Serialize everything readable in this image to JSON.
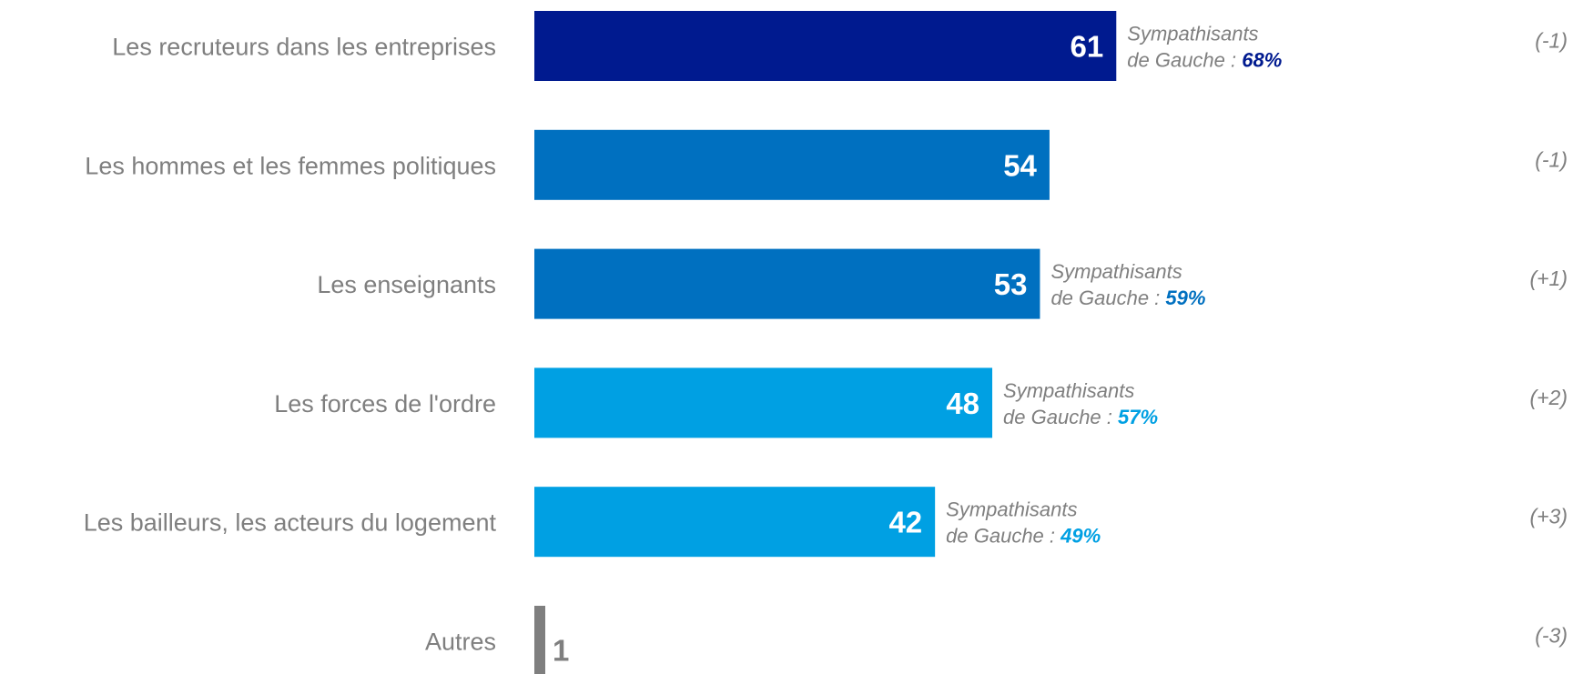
{
  "chart_data": {
    "type": "bar",
    "orientation": "horizontal",
    "categories": [
      "Les recruteurs dans les entreprises",
      "Les hommes et les femmes politiques",
      "Les enseignants",
      "Les forces de l'ordre",
      "Les bailleurs, les acteurs du logement",
      "Autres"
    ],
    "values": [
      61,
      54,
      53,
      48,
      42,
      1
    ],
    "value_labels": [
      "61",
      "54",
      "53",
      "48",
      "42",
      "1"
    ],
    "bar_colors": [
      "#001a8f",
      "#0070c0",
      "#0070c0",
      "#00a0e3",
      "#00a0e3",
      "#7f7f7f"
    ],
    "annotations": [
      {
        "line1": "Sympathisants",
        "line2_prefix": "de Gauche : ",
        "value": "68%",
        "color": "#001a8f"
      },
      null,
      {
        "line1": "Sympathisants",
        "line2_prefix": "de Gauche : ",
        "value": "59%",
        "color": "#0070c0"
      },
      {
        "line1": "Sympathisants",
        "line2_prefix": "de Gauche : ",
        "value": "57%",
        "color": "#00a0e3"
      },
      {
        "line1": "Sympathisants",
        "line2_prefix": "de Gauche : ",
        "value": "49%",
        "color": "#00a0e3"
      },
      null
    ],
    "deltas": [
      "(-1)",
      "(-1)",
      "(+1)",
      "(+2)",
      "(+3)",
      "(-3)"
    ],
    "xlim": [
      0,
      67
    ],
    "grid": false,
    "legend": "none"
  }
}
